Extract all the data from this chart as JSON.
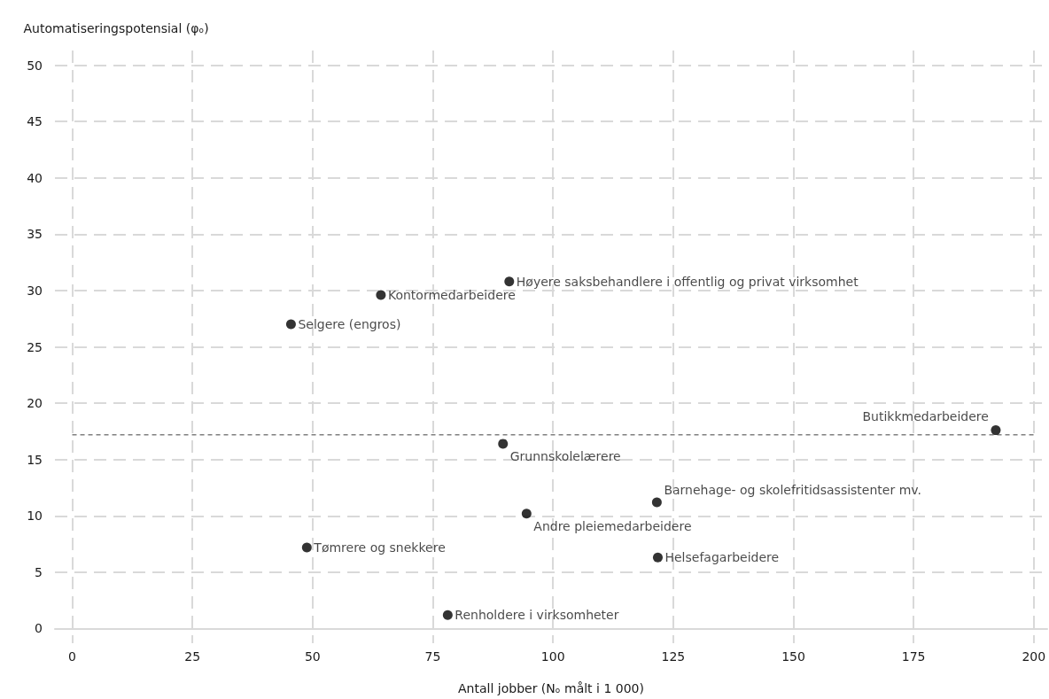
{
  "chart_data": {
    "type": "scatter",
    "xlabel": "Antall jobber (Nₒ målt i 1 000)",
    "ylabel": "Automatiseringspotensial (φₒ)",
    "series": [
      {
        "color": "#000000",
        "x": [
          90.9,
          64.2,
          45.5,
          192.1,
          89.6,
          121.6,
          94.5,
          48.8,
          121.8,
          78.1
        ],
        "values": [
          30.8,
          29.6,
          27.0,
          17.6,
          16.4,
          11.2,
          10.2,
          7.2,
          6.3,
          1.2
        ]
      }
    ],
    "annotations": [
      {
        "text": "Høyere saksbehandlere i offentlig og privat virksomhet",
        "x": 90.9,
        "y": 30.8
      },
      {
        "text": "Kontormedarbeidere",
        "x": 64.2,
        "y": 29.6
      },
      {
        "text": "Selgere (engros)",
        "x": 45.5,
        "y": 27.0
      },
      {
        "text": "Butikkmedarbeidere",
        "x": 192.1,
        "y": 17.6
      },
      {
        "text": "Grunnskolelærere",
        "x": 89.6,
        "y": 16.4
      },
      {
        "text": "Barnehage- og skolefritidsassistenter mv.",
        "x": 121.6,
        "y": 11.2
      },
      {
        "text": "Andre pleiemedarbeidere",
        "x": 94.5,
        "y": 10.2
      },
      {
        "text": "Tømrere og snekkere",
        "x": 48.8,
        "y": 7.2
      },
      {
        "text": "Helsefagarbeidere",
        "x": 121.8,
        "y": 6.3
      },
      {
        "text": "Renholdere i virksomheter",
        "x": 78.1,
        "y": 1.2
      }
    ],
    "ref_lines": [
      {
        "axis": "y",
        "value": 17.2,
        "label": null,
        "color": "#808080",
        "line_style": "dashed"
      }
    ],
    "xlim": [
      -3.6,
      202.8
    ],
    "xticks": [
      0,
      25,
      50,
      75,
      100,
      125,
      150,
      175,
      200
    ],
    "ylim": [
      -1.3,
      51.3
    ],
    "yticks": [
      0,
      5,
      10,
      15,
      20,
      25,
      30,
      35,
      40,
      45,
      50
    ],
    "grid": true,
    "marker": "circle"
  }
}
